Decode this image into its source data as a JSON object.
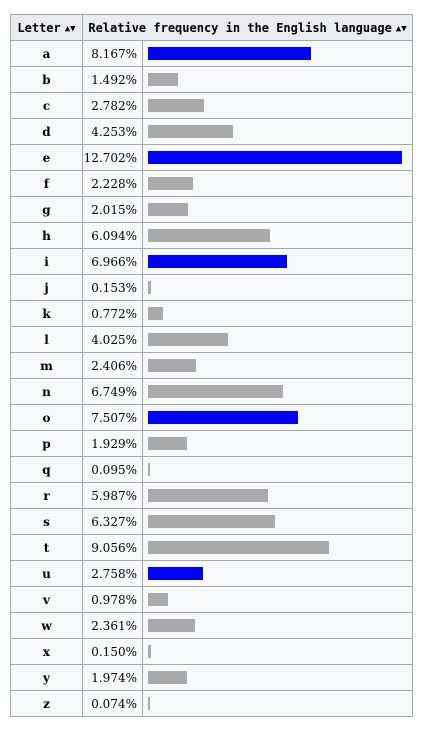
{
  "table": {
    "header_letter": "Letter",
    "header_freq": "Relative frequency in the English language",
    "sort_icon": "sort-both-arrows"
  },
  "colors": {
    "vowel_bar": "#0000ff",
    "consonant_bar": "#aaaaaa",
    "header_bg": "#eaecf0",
    "cell_bg": "#f8f9fa",
    "border": "#a2a9b1"
  },
  "chart_data": {
    "type": "bar",
    "orientation": "horizontal",
    "unit": "%",
    "categories": [
      "a",
      "b",
      "c",
      "d",
      "e",
      "f",
      "g",
      "h",
      "i",
      "j",
      "k",
      "l",
      "m",
      "n",
      "o",
      "p",
      "q",
      "r",
      "s",
      "t",
      "u",
      "v",
      "w",
      "x",
      "y",
      "z"
    ],
    "values": [
      8.167,
      1.492,
      2.782,
      4.253,
      12.702,
      2.228,
      2.015,
      6.094,
      6.966,
      0.153,
      0.772,
      4.025,
      2.406,
      6.749,
      7.507,
      1.929,
      0.095,
      5.987,
      6.327,
      9.056,
      2.758,
      0.978,
      2.361,
      0.15,
      1.974,
      0.074
    ],
    "labels": [
      "8.167%",
      "1.492%",
      "2.782%",
      "4.253%",
      "12.702%",
      "2.228%",
      "2.015%",
      "6.094%",
      "6.966%",
      "0.153%",
      "0.772%",
      "4.025%",
      "2.406%",
      "6.749%",
      "7.507%",
      "1.929%",
      "0.095%",
      "5.987%",
      "6.327%",
      "9.056%",
      "2.758%",
      "0.978%",
      "2.361%",
      "0.150%",
      "1.974%",
      "0.074%"
    ],
    "highlighted": [
      "a",
      "e",
      "i",
      "o",
      "u"
    ],
    "xlim": [
      0,
      12.702
    ]
  }
}
